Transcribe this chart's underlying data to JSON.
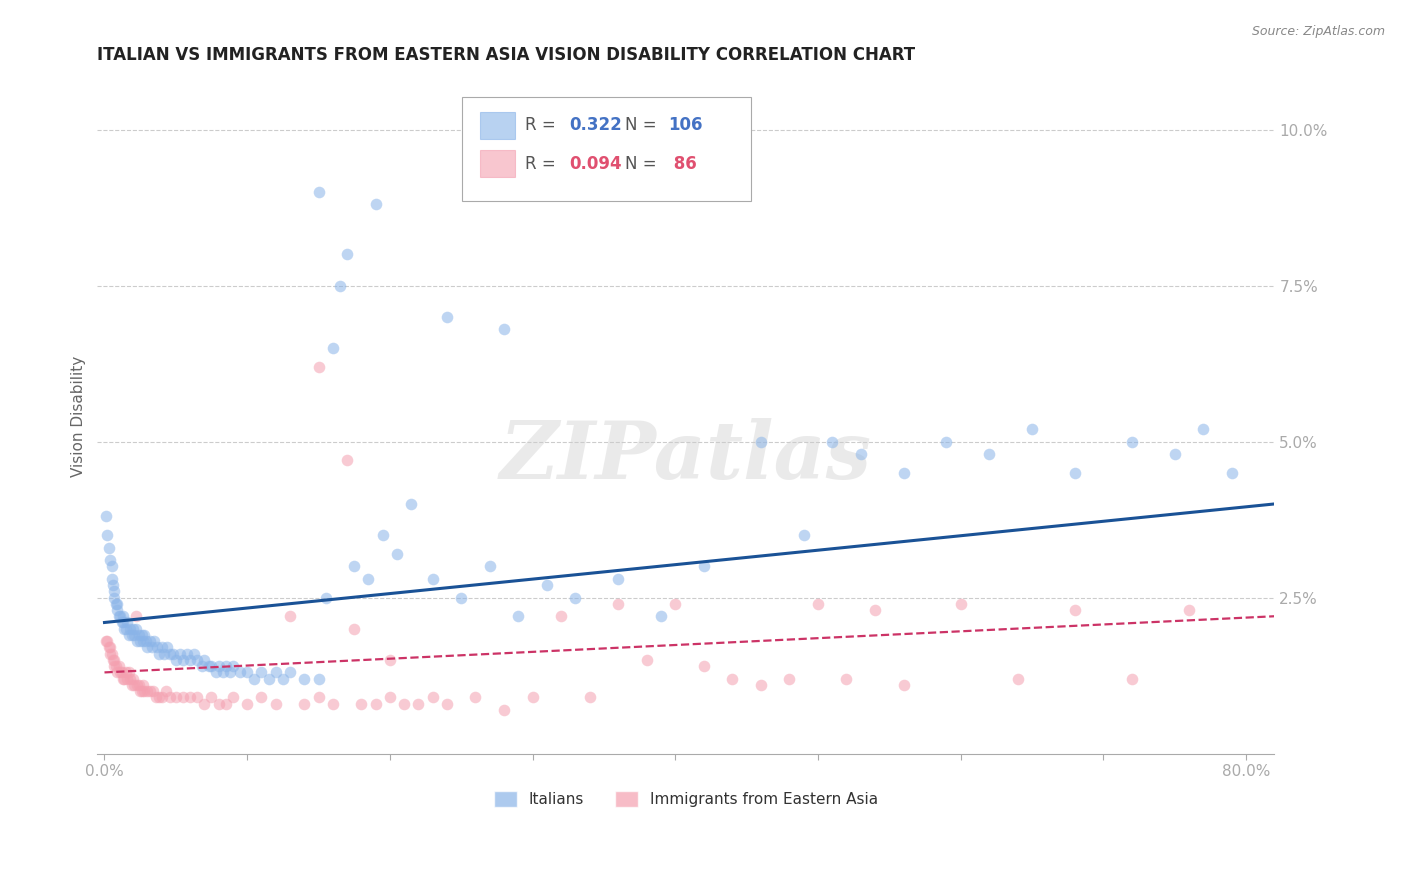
{
  "title": "ITALIAN VS IMMIGRANTS FROM EASTERN ASIA VISION DISABILITY CORRELATION CHART",
  "source": "Source: ZipAtlas.com",
  "ylabel": "Vision Disability",
  "xlabel_ticks": [
    "0.0%",
    "",
    "",
    "",
    "",
    "",
    "",
    "",
    "80.0%"
  ],
  "xtick_values": [
    0.0,
    0.1,
    0.2,
    0.3,
    0.4,
    0.5,
    0.6,
    0.7,
    0.8
  ],
  "ytick_labels": [
    "2.5%",
    "5.0%",
    "7.5%",
    "10.0%"
  ],
  "ytick_values": [
    0.025,
    0.05,
    0.075,
    0.1
  ],
  "xlim": [
    -0.005,
    0.82
  ],
  "ylim": [
    0.0,
    0.108
  ],
  "legend1_label": "Italians",
  "legend2_label": "Immigrants from Eastern Asia",
  "r1": "0.322",
  "n1": "106",
  "r2": "0.094",
  "n2": " 86",
  "color_blue": "#8ab4e8",
  "color_pink": "#f4a0b0",
  "color_blue_text": "#4472c4",
  "color_pink_text": "#e05070",
  "line_color_blue": "#1a5296",
  "line_color_pink": "#cc3366",
  "watermark": "ZIPatlas",
  "background_color": "#ffffff",
  "grid_color": "#cccccc",
  "title_fontsize": 12,
  "axis_fontsize": 11,
  "tick_fontsize": 11,
  "scatter_alpha": 0.55,
  "scatter_size": 70,
  "blue_x": [
    0.001,
    0.002,
    0.003,
    0.004,
    0.005,
    0.005,
    0.006,
    0.007,
    0.007,
    0.008,
    0.009,
    0.009,
    0.01,
    0.011,
    0.012,
    0.013,
    0.013,
    0.014,
    0.015,
    0.016,
    0.017,
    0.018,
    0.019,
    0.02,
    0.021,
    0.022,
    0.023,
    0.024,
    0.025,
    0.026,
    0.027,
    0.028,
    0.029,
    0.03,
    0.032,
    0.033,
    0.035,
    0.037,
    0.038,
    0.04,
    0.042,
    0.044,
    0.046,
    0.048,
    0.05,
    0.053,
    0.055,
    0.058,
    0.06,
    0.063,
    0.065,
    0.068,
    0.07,
    0.073,
    0.075,
    0.078,
    0.08,
    0.083,
    0.085,
    0.088,
    0.09,
    0.095,
    0.1,
    0.105,
    0.11,
    0.115,
    0.12,
    0.125,
    0.13,
    0.14,
    0.15,
    0.155,
    0.16,
    0.165,
    0.17,
    0.175,
    0.185,
    0.195,
    0.205,
    0.215,
    0.23,
    0.25,
    0.27,
    0.29,
    0.31,
    0.33,
    0.36,
    0.39,
    0.42,
    0.46,
    0.49,
    0.51,
    0.53,
    0.56,
    0.59,
    0.62,
    0.65,
    0.68,
    0.72,
    0.75,
    0.77,
    0.79,
    0.15,
    0.19,
    0.24,
    0.28
  ],
  "blue_y": [
    0.038,
    0.035,
    0.033,
    0.031,
    0.03,
    0.028,
    0.027,
    0.026,
    0.025,
    0.024,
    0.024,
    0.023,
    0.022,
    0.022,
    0.021,
    0.021,
    0.022,
    0.02,
    0.02,
    0.021,
    0.019,
    0.02,
    0.019,
    0.02,
    0.019,
    0.02,
    0.018,
    0.019,
    0.018,
    0.019,
    0.018,
    0.019,
    0.018,
    0.017,
    0.018,
    0.017,
    0.018,
    0.017,
    0.016,
    0.017,
    0.016,
    0.017,
    0.016,
    0.016,
    0.015,
    0.016,
    0.015,
    0.016,
    0.015,
    0.016,
    0.015,
    0.014,
    0.015,
    0.014,
    0.014,
    0.013,
    0.014,
    0.013,
    0.014,
    0.013,
    0.014,
    0.013,
    0.013,
    0.012,
    0.013,
    0.012,
    0.013,
    0.012,
    0.013,
    0.012,
    0.012,
    0.025,
    0.065,
    0.075,
    0.08,
    0.03,
    0.028,
    0.035,
    0.032,
    0.04,
    0.028,
    0.025,
    0.03,
    0.022,
    0.027,
    0.025,
    0.028,
    0.022,
    0.03,
    0.05,
    0.035,
    0.05,
    0.048,
    0.045,
    0.05,
    0.048,
    0.052,
    0.045,
    0.05,
    0.048,
    0.052,
    0.045,
    0.09,
    0.088,
    0.07,
    0.068
  ],
  "pink_x": [
    0.001,
    0.002,
    0.003,
    0.004,
    0.004,
    0.005,
    0.006,
    0.007,
    0.007,
    0.008,
    0.009,
    0.01,
    0.011,
    0.012,
    0.013,
    0.014,
    0.015,
    0.016,
    0.017,
    0.018,
    0.019,
    0.02,
    0.021,
    0.022,
    0.023,
    0.024,
    0.025,
    0.026,
    0.027,
    0.028,
    0.03,
    0.032,
    0.034,
    0.036,
    0.038,
    0.04,
    0.043,
    0.046,
    0.05,
    0.055,
    0.06,
    0.065,
    0.07,
    0.075,
    0.08,
    0.085,
    0.09,
    0.1,
    0.11,
    0.12,
    0.13,
    0.14,
    0.15,
    0.16,
    0.17,
    0.18,
    0.19,
    0.2,
    0.21,
    0.22,
    0.23,
    0.24,
    0.26,
    0.28,
    0.3,
    0.32,
    0.34,
    0.36,
    0.38,
    0.4,
    0.42,
    0.44,
    0.46,
    0.48,
    0.5,
    0.52,
    0.54,
    0.56,
    0.6,
    0.64,
    0.68,
    0.72,
    0.76,
    0.15,
    0.175,
    0.2
  ],
  "pink_y": [
    0.018,
    0.018,
    0.017,
    0.017,
    0.016,
    0.016,
    0.015,
    0.015,
    0.014,
    0.014,
    0.013,
    0.014,
    0.013,
    0.013,
    0.012,
    0.012,
    0.013,
    0.012,
    0.013,
    0.012,
    0.011,
    0.012,
    0.011,
    0.022,
    0.011,
    0.011,
    0.01,
    0.01,
    0.011,
    0.01,
    0.01,
    0.01,
    0.01,
    0.009,
    0.009,
    0.009,
    0.01,
    0.009,
    0.009,
    0.009,
    0.009,
    0.009,
    0.008,
    0.009,
    0.008,
    0.008,
    0.009,
    0.008,
    0.009,
    0.008,
    0.022,
    0.008,
    0.009,
    0.008,
    0.047,
    0.008,
    0.008,
    0.009,
    0.008,
    0.008,
    0.009,
    0.008,
    0.009,
    0.007,
    0.009,
    0.022,
    0.009,
    0.024,
    0.015,
    0.024,
    0.014,
    0.012,
    0.011,
    0.012,
    0.024,
    0.012,
    0.023,
    0.011,
    0.024,
    0.012,
    0.023,
    0.012,
    0.023,
    0.062,
    0.02,
    0.015
  ],
  "blue_trend_x": [
    0.0,
    0.82
  ],
  "blue_trend_y": [
    0.021,
    0.04
  ],
  "pink_trend_x": [
    0.0,
    0.82
  ],
  "pink_trend_y": [
    0.013,
    0.022
  ]
}
